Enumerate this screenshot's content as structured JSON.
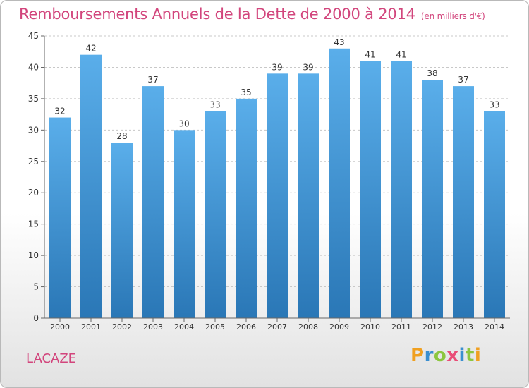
{
  "header": {
    "title": "Remboursements Annuels de la Dette de 2000 à 2014",
    "unit": "(en milliers d'€)"
  },
  "commune": "LACAZE",
  "brand": {
    "name": "Proxiti",
    "letters": [
      {
        "ch": "P",
        "color": "#f0a020"
      },
      {
        "ch": "r",
        "color": "#3a8fd0"
      },
      {
        "ch": "o",
        "color": "#8cc63f"
      },
      {
        "ch": "x",
        "color": "#e94e77"
      },
      {
        "ch": "i",
        "color": "#3a8fd0"
      },
      {
        "ch": "t",
        "color": "#8cc63f"
      },
      {
        "ch": "i",
        "color": "#f0a020"
      }
    ]
  },
  "colors": {
    "bar_top": "#5aaeea",
    "bar_bottom": "#2a77b6",
    "title": "#d2457c",
    "grid": "#c8c8c8",
    "axis_text": "#333333"
  },
  "chart_data": {
    "type": "bar",
    "title": "Remboursements Annuels de la Dette de 2000 à 2014",
    "xlabel": "",
    "ylabel": "",
    "categories": [
      "2000",
      "2001",
      "2002",
      "2003",
      "2004",
      "2005",
      "2006",
      "2007",
      "2008",
      "2009",
      "2010",
      "2011",
      "2012",
      "2013",
      "2014"
    ],
    "values": [
      32,
      42,
      28,
      37,
      30,
      33,
      35,
      39,
      39,
      43,
      41,
      41,
      38,
      37,
      33
    ],
    "ylim": [
      0,
      45
    ],
    "yticks": [
      0,
      5,
      10,
      15,
      20,
      25,
      30,
      35,
      40,
      45
    ],
    "grid": true
  }
}
